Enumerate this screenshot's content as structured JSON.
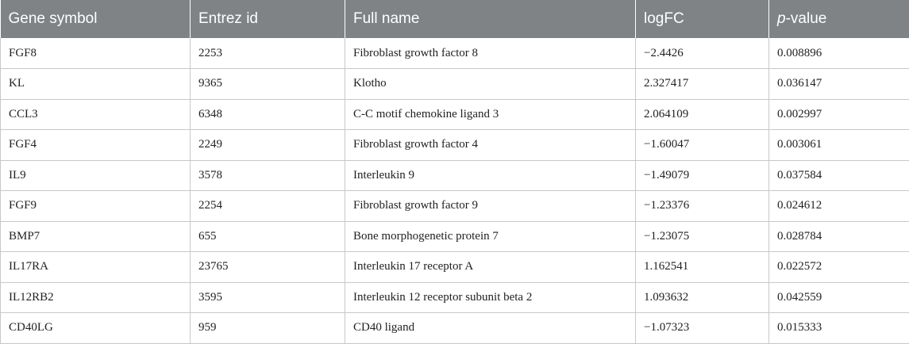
{
  "table": {
    "headers": {
      "gene_symbol": "Gene symbol",
      "entrez_id": "Entrez id",
      "full_name": "Full name",
      "logfc": "logFC",
      "p_prefix": "p",
      "p_suffix": "-value"
    },
    "rows": [
      {
        "gene_symbol": "FGF8",
        "entrez_id": "2253",
        "full_name": "Fibroblast growth factor 8",
        "logfc": "−2.4426",
        "p_value": "0.008896"
      },
      {
        "gene_symbol": "KL",
        "entrez_id": "9365",
        "full_name": "Klotho",
        "logfc": "2.327417",
        "p_value": "0.036147"
      },
      {
        "gene_symbol": "CCL3",
        "entrez_id": "6348",
        "full_name": "C-C motif chemokine ligand 3",
        "logfc": "2.064109",
        "p_value": "0.002997"
      },
      {
        "gene_symbol": "FGF4",
        "entrez_id": "2249",
        "full_name": "Fibroblast growth factor 4",
        "logfc": "−1.60047",
        "p_value": "0.003061"
      },
      {
        "gene_symbol": "IL9",
        "entrez_id": "3578",
        "full_name": "Interleukin 9",
        "logfc": "−1.49079",
        "p_value": "0.037584"
      },
      {
        "gene_symbol": "FGF9",
        "entrez_id": "2254",
        "full_name": "Fibroblast growth factor 9",
        "logfc": "−1.23376",
        "p_value": "0.024612"
      },
      {
        "gene_symbol": "BMP7",
        "entrez_id": "655",
        "full_name": "Bone morphogenetic protein 7",
        "logfc": "−1.23075",
        "p_value": "0.028784"
      },
      {
        "gene_symbol": "IL17RA",
        "entrez_id": "23765",
        "full_name": "Interleukin 17 receptor A",
        "logfc": "1.162541",
        "p_value": "0.022572"
      },
      {
        "gene_symbol": "IL12RB2",
        "entrez_id": "3595",
        "full_name": "Interleukin 12 receptor subunit beta 2",
        "logfc": "1.093632",
        "p_value": "0.042559"
      },
      {
        "gene_symbol": "CD40LG",
        "entrez_id": "959",
        "full_name": "CD40 ligand",
        "logfc": "−1.07323",
        "p_value": "0.015333"
      }
    ]
  },
  "colors": {
    "header_background": "#7f8385",
    "header_text": "#ffffff",
    "grid_line": "#c8c8c8"
  }
}
